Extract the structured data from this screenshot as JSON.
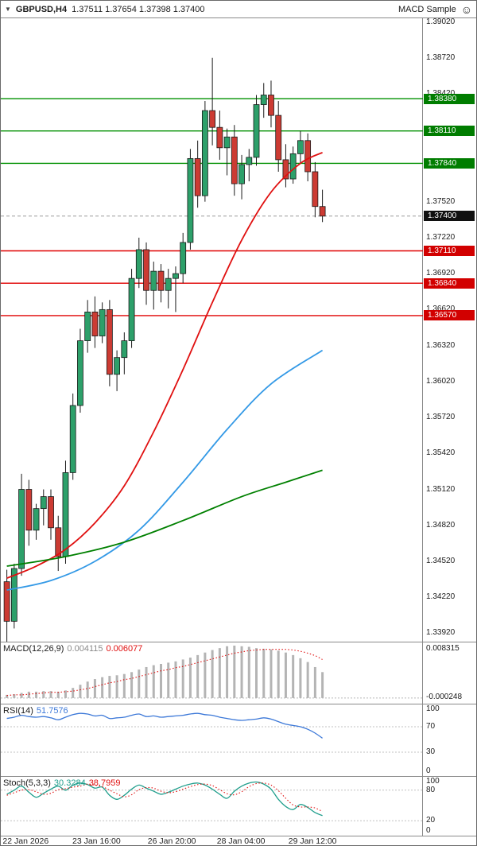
{
  "window": {
    "symbol_period": "GBPUSD,H4",
    "quote_ohlc": "1.37511 1.37654 1.37398 1.37400",
    "ea_name": "MACD Sample",
    "smiley_icon": "smiley-face"
  },
  "chart_data": {
    "type": "candlestick",
    "title": "GBPUSD,H4",
    "legend_position": "none",
    "grid": false,
    "colors": {
      "bull": "#2da06a",
      "bear": "#cc3b33",
      "wick": "#1a1a1a",
      "resistance": "#009000",
      "support": "#e00000",
      "current_dash": "#9a9a9a",
      "ma_fast": "#e01010",
      "ma_mid": "#3399e6",
      "ma_slow": "#008000",
      "macd_hist": "#b4b4b4",
      "macd_signal": "#e01010",
      "rsi_line": "#3c78d8",
      "stoch_main": "#1f9e8c",
      "stoch_signal": "#e01010"
    },
    "price_axis": {
      "min": 1.3385,
      "max": 1.3905,
      "ticks": [
        "1.39020",
        "1.38720",
        "1.38420",
        "1.37520",
        "1.37220",
        "1.36920",
        "1.36620",
        "1.36320",
        "1.36020",
        "1.35720",
        "1.35420",
        "1.35120",
        "1.34820",
        "1.34520",
        "1.34220",
        "1.33920"
      ]
    },
    "levels": {
      "lines": [
        {
          "price": 1.3838,
          "color": "#009000",
          "kind": "resistance"
        },
        {
          "price": 1.3811,
          "color": "#009000",
          "kind": "resistance"
        },
        {
          "price": 1.3784,
          "color": "#009000",
          "kind": "resistance"
        },
        {
          "price": 1.3711,
          "color": "#e00000",
          "kind": "support"
        },
        {
          "price": 1.3684,
          "color": "#e00000",
          "kind": "support"
        },
        {
          "price": 1.3657,
          "color": "#e00000",
          "kind": "support"
        }
      ],
      "labels": [
        {
          "text": "1.38380",
          "price": 1.3838,
          "bg": "#007d00"
        },
        {
          "text": "1.38110",
          "price": 1.3811,
          "bg": "#007d00"
        },
        {
          "text": "1.37840",
          "price": 1.3784,
          "bg": "#007d00"
        },
        {
          "text": "1.37400",
          "price": 1.374,
          "bg": "#101010"
        },
        {
          "text": "1.37110",
          "price": 1.3711,
          "bg": "#d20000"
        },
        {
          "text": "1.36840",
          "price": 1.3684,
          "bg": "#d20000"
        },
        {
          "text": "1.36570",
          "price": 1.3657,
          "bg": "#d20000"
        }
      ],
      "current_price": 1.374
    },
    "candles": [
      [
        1.3435,
        1.3445,
        1.338,
        1.3402
      ],
      [
        1.3402,
        1.345,
        1.3396,
        1.3446
      ],
      [
        1.3446,
        1.3525,
        1.344,
        1.3512
      ],
      [
        1.3512,
        1.352,
        1.3465,
        1.3478
      ],
      [
        1.3478,
        1.35,
        1.347,
        1.3496
      ],
      [
        1.3496,
        1.3512,
        1.3482,
        1.3506
      ],
      [
        1.3506,
        1.3512,
        1.347,
        1.348
      ],
      [
        1.348,
        1.349,
        1.3444,
        1.3456
      ],
      [
        1.3456,
        1.3536,
        1.345,
        1.3526
      ],
      [
        1.3526,
        1.3592,
        1.352,
        1.3582
      ],
      [
        1.3582,
        1.3646,
        1.3576,
        1.3636
      ],
      [
        1.3636,
        1.367,
        1.3626,
        1.366
      ],
      [
        1.366,
        1.3673,
        1.363,
        1.364
      ],
      [
        1.364,
        1.3668,
        1.3634,
        1.3662
      ],
      [
        1.3662,
        1.367,
        1.3598,
        1.3608
      ],
      [
        1.3608,
        1.3628,
        1.3594,
        1.3622
      ],
      [
        1.3622,
        1.3643,
        1.3608,
        1.3636
      ],
      [
        1.3636,
        1.3696,
        1.363,
        1.3688
      ],
      [
        1.3688,
        1.3722,
        1.368,
        1.3712
      ],
      [
        1.3712,
        1.3718,
        1.3666,
        1.3678
      ],
      [
        1.3678,
        1.3702,
        1.3662,
        1.3694
      ],
      [
        1.3694,
        1.37,
        1.3668,
        1.3678
      ],
      [
        1.3678,
        1.3696,
        1.3663,
        1.3688
      ],
      [
        1.3688,
        1.3698,
        1.366,
        1.3692
      ],
      [
        1.3692,
        1.3726,
        1.3684,
        1.3718
      ],
      [
        1.3718,
        1.3796,
        1.3712,
        1.3788
      ],
      [
        1.3788,
        1.3803,
        1.3747,
        1.3757
      ],
      [
        1.3757,
        1.3836,
        1.3752,
        1.3828
      ],
      [
        1.3828,
        1.3872,
        1.3799,
        1.3814
      ],
      [
        1.3814,
        1.3828,
        1.3787,
        1.3797
      ],
      [
        1.3797,
        1.3813,
        1.3774,
        1.3806
      ],
      [
        1.3806,
        1.3816,
        1.3757,
        1.3767
      ],
      [
        1.3767,
        1.3791,
        1.3754,
        1.3783
      ],
      [
        1.3783,
        1.3796,
        1.3769,
        1.3789
      ],
      [
        1.3789,
        1.3841,
        1.3782,
        1.3833
      ],
      [
        1.3833,
        1.3851,
        1.3822,
        1.3841
      ],
      [
        1.3841,
        1.3853,
        1.3814,
        1.3824
      ],
      [
        1.3824,
        1.3836,
        1.3777,
        1.3787
      ],
      [
        1.3787,
        1.38,
        1.3764,
        1.3771
      ],
      [
        1.3771,
        1.3798,
        1.3767,
        1.3792
      ],
      [
        1.3792,
        1.3811,
        1.3784,
        1.3803
      ],
      [
        1.3803,
        1.3809,
        1.3769,
        1.3777
      ],
      [
        1.3777,
        1.3785,
        1.3739,
        1.3748
      ],
      [
        1.3748,
        1.3762,
        1.3735,
        1.374
      ]
    ],
    "moving_averages": [
      {
        "name": "ma-fast-red",
        "color": "#e01010",
        "points": [
          [
            0,
            1.3438
          ],
          [
            4,
            1.3448
          ],
          [
            8,
            1.3462
          ],
          [
            12,
            1.3484
          ],
          [
            16,
            1.3515
          ],
          [
            20,
            1.356
          ],
          [
            24,
            1.3612
          ],
          [
            28,
            1.3668
          ],
          [
            32,
            1.372
          ],
          [
            36,
            1.376
          ],
          [
            40,
            1.3784
          ],
          [
            43,
            1.3793
          ]
        ]
      },
      {
        "name": "ma-mid-blue",
        "color": "#3399e6",
        "points": [
          [
            0,
            1.3428
          ],
          [
            6,
            1.3436
          ],
          [
            12,
            1.3452
          ],
          [
            18,
            1.3478
          ],
          [
            24,
            1.3518
          ],
          [
            30,
            1.3562
          ],
          [
            36,
            1.36
          ],
          [
            43,
            1.3628
          ]
        ]
      },
      {
        "name": "ma-slow-green",
        "color": "#008000",
        "points": [
          [
            0,
            1.3448
          ],
          [
            8,
            1.3456
          ],
          [
            16,
            1.3468
          ],
          [
            24,
            1.3486
          ],
          [
            32,
            1.3506
          ],
          [
            38,
            1.3518
          ],
          [
            43,
            1.3528
          ]
        ]
      }
    ],
    "time_axis": {
      "labels": [
        "22 Jan 2026",
        "23 Jan 16:00",
        "26 Jan 20:00",
        "28 Jan 04:00",
        "29 Jan 12:00"
      ],
      "positions": [
        0.004,
        0.15,
        0.308,
        0.453,
        0.603
      ]
    },
    "indicators": {
      "macd": {
        "name": "MACD(12,26,9)",
        "value_main": "0.004115",
        "value_signal": "0.006077",
        "axis_top": "0.008315",
        "axis_bottom": "-0.000248",
        "ylim": [
          -0.0009,
          0.0088
        ],
        "histogram": [
          0.0005,
          0.0006,
          0.0008,
          0.001,
          0.001,
          0.0011,
          0.0011,
          0.001,
          0.0012,
          0.0016,
          0.0021,
          0.0026,
          0.003,
          0.0033,
          0.0035,
          0.0036,
          0.0038,
          0.0041,
          0.0045,
          0.0049,
          0.0052,
          0.0054,
          0.0056,
          0.0058,
          0.0061,
          0.0064,
          0.0068,
          0.0072,
          0.0076,
          0.0079,
          0.0082,
          0.0083,
          0.0082,
          0.0081,
          0.0079,
          0.0078,
          0.0077,
          0.0075,
          0.0072,
          0.0068,
          0.0063,
          0.0057,
          0.0049,
          0.0041
        ],
        "signal": [
          0.0004,
          0.0005,
          0.0005,
          0.0006,
          0.0007,
          0.0008,
          0.0009,
          0.0009,
          0.001,
          0.0011,
          0.0013,
          0.0015,
          0.0018,
          0.0021,
          0.0024,
          0.0026,
          0.0029,
          0.0031,
          0.0034,
          0.0037,
          0.004,
          0.0043,
          0.0045,
          0.0048,
          0.005,
          0.0053,
          0.0056,
          0.0059,
          0.0062,
          0.0065,
          0.0068,
          0.0071,
          0.0073,
          0.0075,
          0.0076,
          0.0077,
          0.0077,
          0.0077,
          0.0077,
          0.0076,
          0.0074,
          0.0071,
          0.0067,
          0.0061
        ]
      },
      "rsi": {
        "name": "RSI(14)",
        "value_main": "51.7576",
        "axis_labels": [
          {
            "text": "100",
            "v": 100
          },
          {
            "text": "70",
            "v": 70
          },
          {
            "text": "30",
            "v": 30
          },
          {
            "text": "0",
            "v": 0
          }
        ],
        "level_lines": [
          70,
          30
        ],
        "ylim": [
          0,
          100
        ],
        "values": [
          83,
          85,
          88,
          86,
          85,
          86,
          84,
          81,
          85,
          89,
          91,
          90,
          87,
          88,
          83,
          84,
          85,
          88,
          90,
          86,
          87,
          85,
          86,
          87,
          88,
          90,
          91,
          89,
          88,
          85,
          83,
          81,
          80,
          81,
          82,
          84,
          82,
          78,
          74,
          72,
          70,
          66,
          60,
          52
        ]
      },
      "stoch": {
        "name": "Stoch(5,3,3)",
        "value_main": "30.3284",
        "value_signal": "38.7959",
        "axis_labels": [
          {
            "text": "100",
            "v": 100
          },
          {
            "text": "80",
            "v": 80
          },
          {
            "text": "20",
            "v": 20
          },
          {
            "text": "0",
            "v": 0
          }
        ],
        "level_lines": [
          80,
          20
        ],
        "ylim": [
          0,
          100
        ],
        "main": [
          72,
          80,
          88,
          76,
          66,
          74,
          82,
          88,
          80,
          90,
          94,
          91,
          84,
          86,
          70,
          62,
          70,
          82,
          90,
          84,
          78,
          72,
          76,
          82,
          88,
          92,
          94,
          90,
          82,
          72,
          64,
          78,
          88,
          94,
          96,
          92,
          82,
          62,
          48,
          42,
          52,
          46,
          36,
          30
        ],
        "signal": [
          70,
          75,
          80,
          81,
          77,
          72,
          74,
          81,
          83,
          86,
          88,
          92,
          90,
          87,
          80,
          73,
          67,
          71,
          81,
          85,
          84,
          78,
          75,
          77,
          82,
          87,
          91,
          92,
          89,
          81,
          73,
          71,
          77,
          87,
          93,
          94,
          90,
          79,
          64,
          51,
          47,
          47,
          45,
          38
        ]
      }
    }
  }
}
